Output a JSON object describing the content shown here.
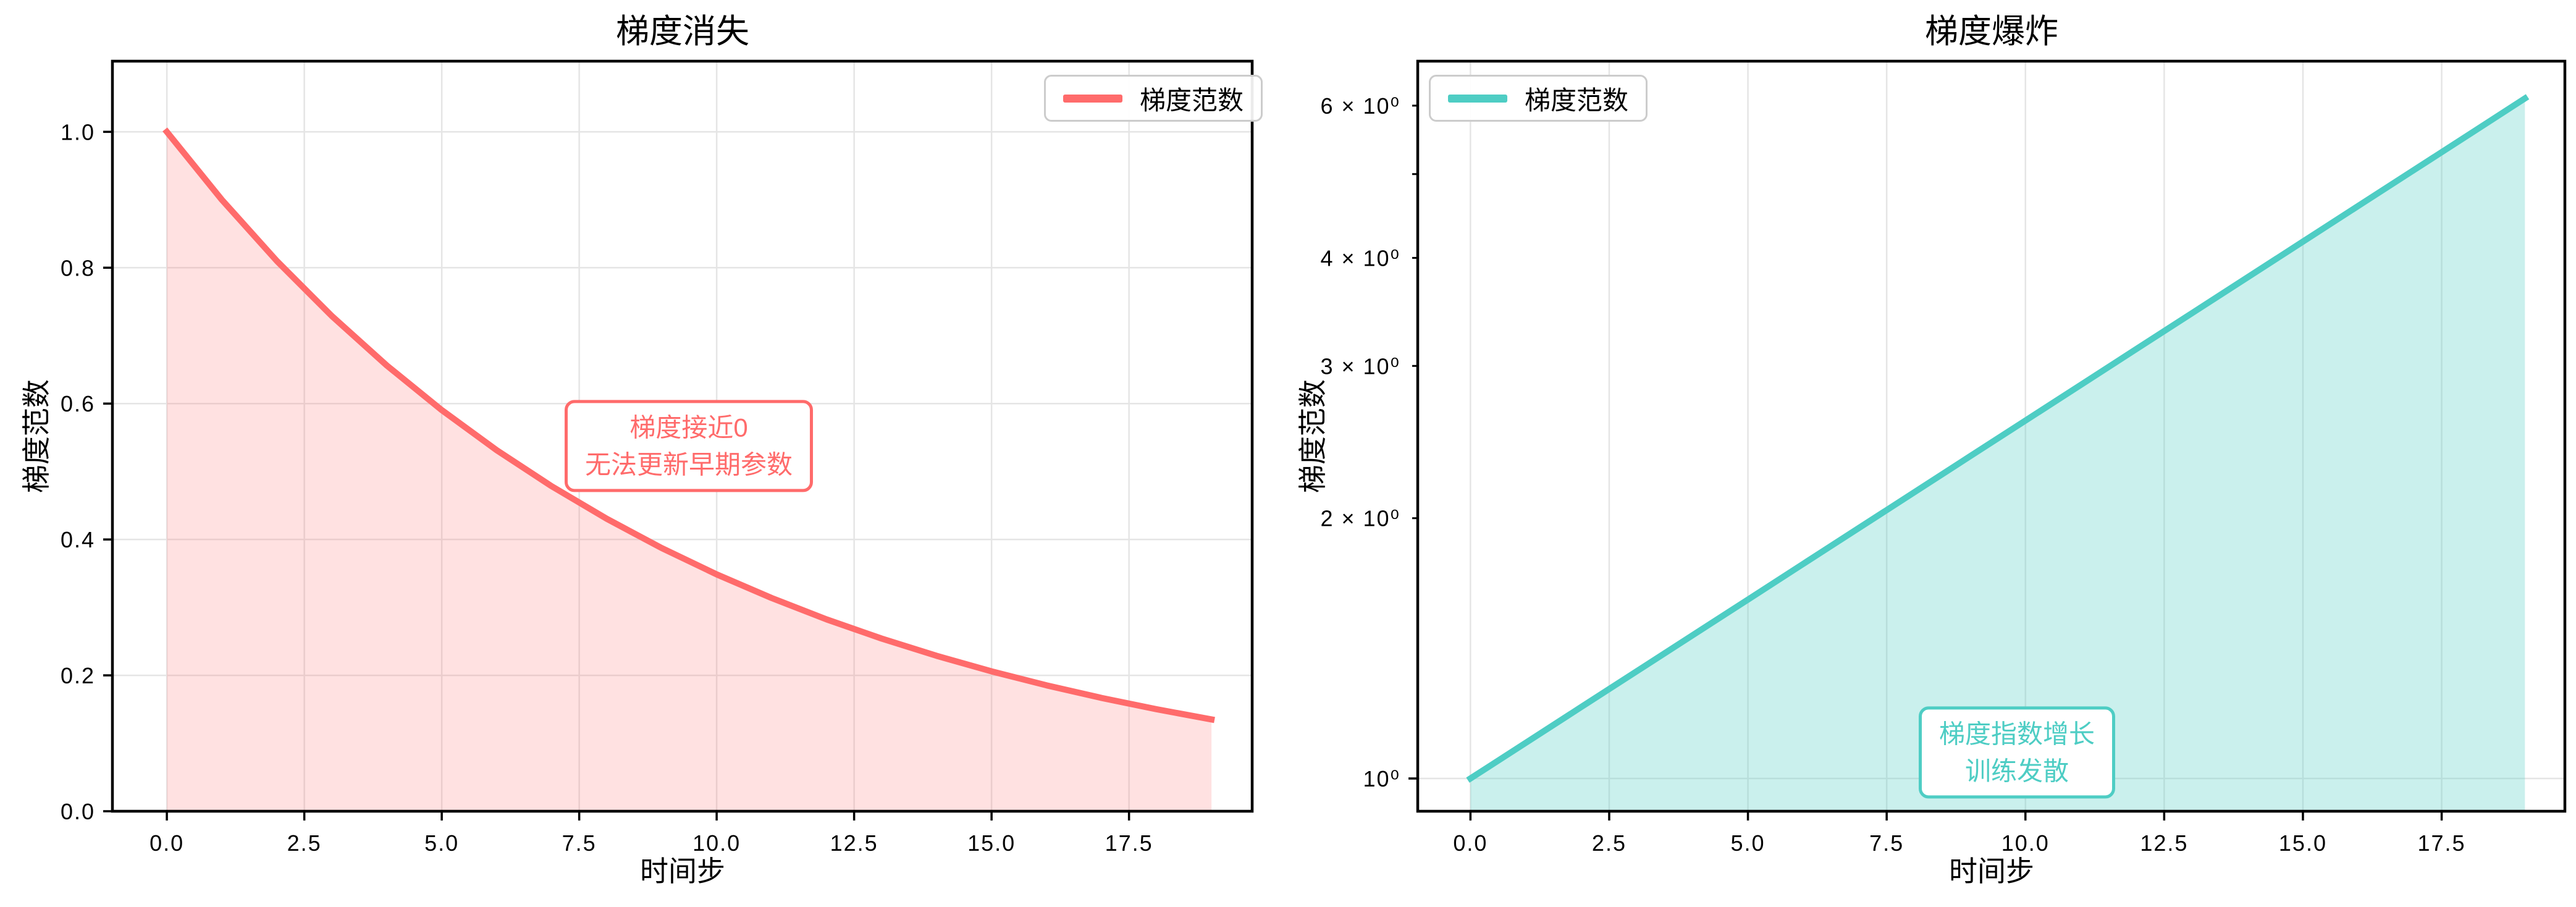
{
  "figure": {
    "background": "#ffffff",
    "grid_color": "#e5e5e5",
    "spine_color": "#000000"
  },
  "chart_data": [
    {
      "type": "area",
      "title": "梯度消失",
      "xlabel": "时间步",
      "ylabel": "梯度范数",
      "legend": [
        "梯度范数"
      ],
      "legend_position": "upper right",
      "line_color": "#FF6B6B",
      "fill_opacity": 0.2,
      "yscale": "linear",
      "grid": true,
      "x": [
        0,
        1,
        2,
        3,
        4,
        5,
        6,
        7,
        8,
        9,
        10,
        11,
        12,
        13,
        14,
        15,
        16,
        17,
        18,
        19
      ],
      "values": [
        1.0,
        0.9,
        0.81,
        0.729,
        0.6561,
        0.5905,
        0.5314,
        0.4783,
        0.4305,
        0.3874,
        0.3487,
        0.3138,
        0.2824,
        0.2542,
        0.2288,
        0.2059,
        0.1853,
        0.1668,
        0.1501,
        0.1351
      ],
      "xlim": [
        -0.99,
        19.74
      ],
      "ylim": [
        0,
        1.104
      ],
      "x_ticks": [
        {
          "v": 0,
          "label": "0.0"
        },
        {
          "v": 2.5,
          "label": "2.5"
        },
        {
          "v": 5,
          "label": "5.0"
        },
        {
          "v": 7.5,
          "label": "7.5"
        },
        {
          "v": 10,
          "label": "10.0"
        },
        {
          "v": 12.5,
          "label": "12.5"
        },
        {
          "v": 15,
          "label": "15.0"
        },
        {
          "v": 17.5,
          "label": "17.5"
        }
      ],
      "y_ticks": [
        {
          "v": 0,
          "label": "0.0",
          "major": true
        },
        {
          "v": 0.2,
          "label": "0.2",
          "major": true
        },
        {
          "v": 0.4,
          "label": "0.4",
          "major": true
        },
        {
          "v": 0.6,
          "label": "0.6",
          "major": true
        },
        {
          "v": 0.8,
          "label": "0.8",
          "major": true
        },
        {
          "v": 1.0,
          "label": "1.0",
          "major": true
        }
      ],
      "annotation": {
        "text": [
          "梯度接近0",
          "无法更新早期参数"
        ]
      }
    },
    {
      "type": "area",
      "title": "梯度爆炸",
      "xlabel": "时间步",
      "ylabel": "梯度范数",
      "legend": [
        "梯度范数"
      ],
      "legend_position": "upper left",
      "line_color": "#4ECDC4",
      "fill_opacity": 0.3,
      "yscale": "log",
      "grid": true,
      "x": [
        0,
        1,
        2,
        3,
        4,
        5,
        6,
        7,
        8,
        9,
        10,
        11,
        12,
        13,
        14,
        15,
        16,
        17,
        18,
        19
      ],
      "values": [
        1.0,
        1.1,
        1.21,
        1.331,
        1.4641,
        1.6105,
        1.7716,
        1.9487,
        2.1436,
        2.3579,
        2.5937,
        2.8531,
        3.1384,
        3.4523,
        3.7975,
        4.1772,
        4.595,
        5.0545,
        5.5599,
        6.1159
      ],
      "xlim": [
        -0.95,
        19.72
      ],
      "ylim": [
        0.9165,
        6.754
      ],
      "x_ticks": [
        {
          "v": 0,
          "label": "0.0"
        },
        {
          "v": 2.5,
          "label": "2.5"
        },
        {
          "v": 5,
          "label": "5.0"
        },
        {
          "v": 7.5,
          "label": "7.5"
        },
        {
          "v": 10,
          "label": "10.0"
        },
        {
          "v": 12.5,
          "label": "12.5"
        },
        {
          "v": 15,
          "label": "15.0"
        },
        {
          "v": 17.5,
          "label": "17.5"
        }
      ],
      "y_ticks": [
        {
          "v": 1,
          "label": "10⁰",
          "major": true
        },
        {
          "v": 2,
          "label": "2 × 10⁰",
          "major": false
        },
        {
          "v": 3,
          "label": "3 × 10⁰",
          "major": false
        },
        {
          "v": 4,
          "label": "4 × 10⁰",
          "major": false
        },
        {
          "v": 5,
          "label": "",
          "major": false
        },
        {
          "v": 6,
          "label": "6 × 10⁰",
          "major": false
        }
      ],
      "annotation": {
        "text": [
          "梯度指数增长",
          "训练发散"
        ]
      }
    }
  ]
}
